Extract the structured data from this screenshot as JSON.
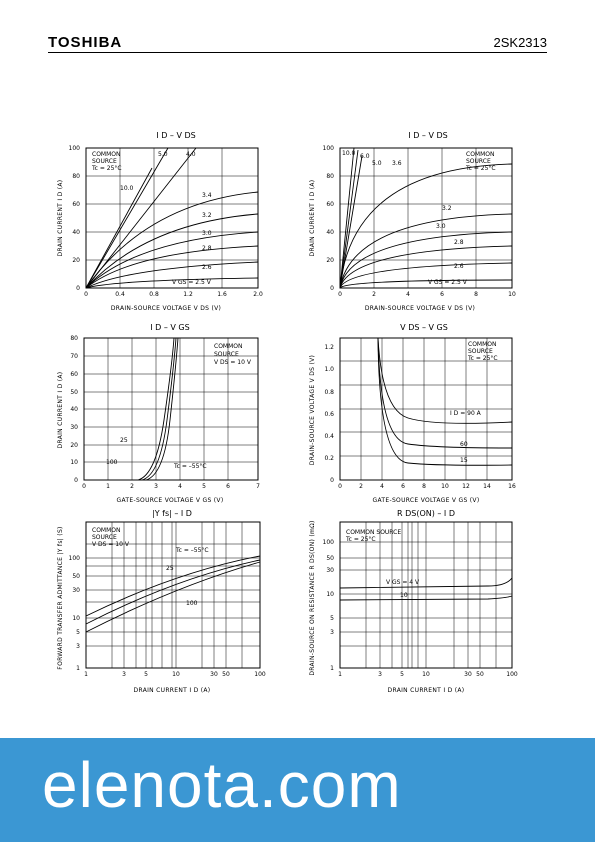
{
  "header": {
    "brand": "TOSHIBA",
    "part": "2SK2313"
  },
  "banner": {
    "text": "elenota.com",
    "color": "#3b97d3"
  },
  "panels": {
    "p1": {
      "title": "I D – V DS",
      "ylabel": "DRAIN CURRENT  I D  (A)",
      "xlabel": "DRAIN-SOURCE VOLTAGE  V DS  (V)",
      "yticks": [
        "0",
        "10",
        "20",
        "30",
        "40",
        "50",
        "60",
        "70",
        "80",
        "90",
        "100"
      ],
      "xticks": [
        "0",
        "0.4",
        "0.8",
        "1.2",
        "1.6",
        "2.0"
      ],
      "note": [
        "COMMON",
        "SOURCE",
        "Tc = 25°C"
      ],
      "curve_labels": [
        "5.0",
        "4.0",
        "10.0",
        "3.4",
        "3.2",
        "3.0",
        "2.8",
        "2.6"
      ],
      "vgs": "V GS = 2.5 V"
    },
    "p2": {
      "title": "I D – V DS",
      "ylabel": "DRAIN CURRENT  I D  (A)",
      "xlabel": "DRAIN-SOURCE VOLTAGE  V DS  (V)",
      "yticks": [
        "0",
        "20",
        "40",
        "60",
        "80",
        "100"
      ],
      "xticks": [
        "0",
        "2",
        "4",
        "6",
        "8",
        "10"
      ],
      "note": [
        "COMMON",
        "SOURCE",
        "Tc = 25°C"
      ],
      "curve_labels": [
        "10.0",
        "6.0",
        "5.0",
        "3.6",
        "3.2",
        "3.0",
        "2.8",
        "2.6"
      ],
      "vgs": "V GS = 2.5 V"
    },
    "p3": {
      "title": "I D – V GS",
      "ylabel": "DRAIN CURRENT  I D  (A)",
      "xlabel": "GATE-SOURCE VOLTAGE  V GS  (V)",
      "yticks": [
        "0",
        "10",
        "20",
        "30",
        "40",
        "50",
        "60",
        "70",
        "80"
      ],
      "xticks": [
        "0",
        "1",
        "2",
        "3",
        "4",
        "5",
        "6",
        "7"
      ],
      "note": [
        "COMMON",
        "SOURCE",
        "V DS = 10 V"
      ],
      "labels": [
        "25",
        "100",
        "Tc = –55°C"
      ]
    },
    "p4": {
      "title": "V DS – V GS",
      "ylabel": "DRAIN-SOURCE VOLTAGE  V DS  (V)",
      "xlabel": "GATE-SOURCE VOLTAGE  V GS  (V)",
      "yticks": [
        "0",
        "0.2",
        "0.4",
        "0.6",
        "0.8",
        "1.0",
        "1.2"
      ],
      "xticks": [
        "0",
        "2",
        "4",
        "6",
        "8",
        "10",
        "12",
        "14",
        "16"
      ],
      "note": [
        "COMMON",
        "SOURCE",
        "Tc = 25°C"
      ],
      "labels": [
        "I D = 90 A",
        "60",
        "15"
      ]
    },
    "p5": {
      "title": "|Y fs| – I D",
      "ylabel": "FORWARD TRANSFER ADMITTANCE |Y fs| (S)",
      "xlabel": "DRAIN CURRENT  I D  (A)",
      "yticks": [
        "100",
        "50",
        "30",
        "10",
        "5",
        "3",
        "1"
      ],
      "xticks": [
        "1",
        "3",
        "5",
        "10",
        "30",
        "50",
        "100"
      ],
      "note": [
        "COMMON",
        "SOURCE",
        "V DS = 10 V"
      ],
      "labels": [
        "Tc = –55°C",
        "25",
        "100"
      ]
    },
    "p6": {
      "title": "R DS(ON) – I D",
      "ylabel": "DRAIN-SOURCE ON RESISTANCE R DS(ON) (mΩ)",
      "xlabel": "DRAIN CURRENT  I D  (A)",
      "yticks": [
        "100",
        "50",
        "30",
        "10",
        "5",
        "3",
        "1"
      ],
      "xticks": [
        "1",
        "3",
        "5",
        "10",
        "30",
        "50",
        "100"
      ],
      "note": [
        "COMMON SOURCE",
        "Tc = 25°C"
      ],
      "labels": [
        "V GS = 4 V",
        "10"
      ]
    }
  }
}
